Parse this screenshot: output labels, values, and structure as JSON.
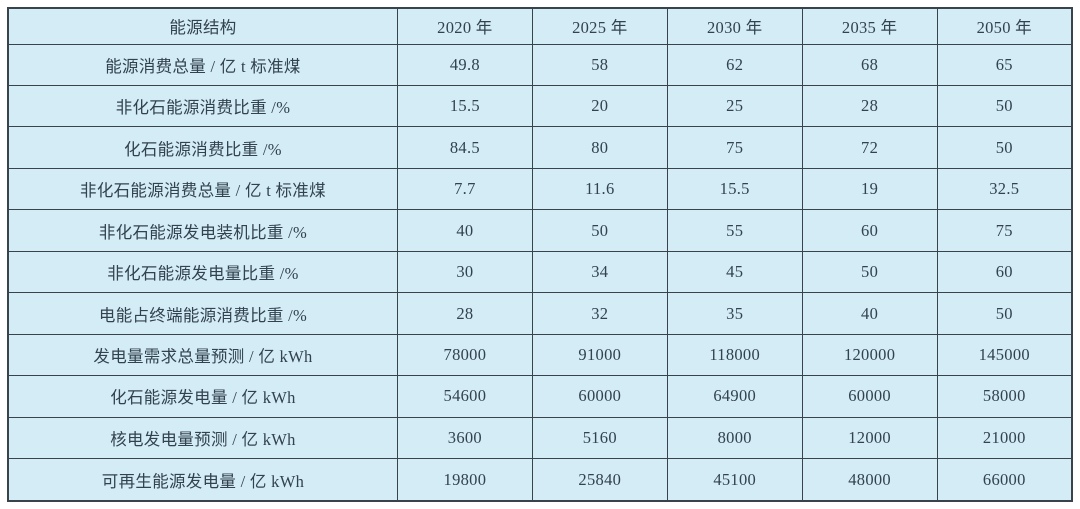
{
  "colors": {
    "cell_background": "#d3ecf6",
    "border": "#39434b",
    "text": "#32424e",
    "page_background": "#ffffff"
  },
  "chart_data": {
    "type": "table",
    "title": "能源结构",
    "columns": {
      "corner": "能源结构",
      "years": [
        "2020 年",
        "2025 年",
        "2030 年",
        "2035 年",
        "2050 年"
      ]
    },
    "rows": [
      {
        "label": "能源消费总量 / 亿 t 标准煤",
        "values": [
          49.8,
          58,
          62,
          68,
          65
        ]
      },
      {
        "label": "非化石能源消费比重 /%",
        "values": [
          15.5,
          20,
          25,
          28,
          50
        ]
      },
      {
        "label": "化石能源消费比重 /%",
        "values": [
          84.5,
          80,
          75,
          72,
          50
        ]
      },
      {
        "label": "非化石能源消费总量 / 亿 t 标准煤",
        "values": [
          7.7,
          11.6,
          15.5,
          19,
          32.5
        ]
      },
      {
        "label": "非化石能源发电装机比重 /%",
        "values": [
          40,
          50,
          55,
          60,
          75
        ]
      },
      {
        "label": "非化石能源发电量比重 /%",
        "values": [
          30,
          34,
          45,
          50,
          60
        ]
      },
      {
        "label": "电能占终端能源消费比重 /%",
        "values": [
          28,
          32,
          35,
          40,
          50
        ]
      },
      {
        "label": "发电量需求总量预测 / 亿 kWh",
        "values": [
          78000,
          91000,
          118000,
          120000,
          145000
        ]
      },
      {
        "label": "化石能源发电量 / 亿 kWh",
        "values": [
          54600,
          60000,
          64900,
          60000,
          58000
        ]
      },
      {
        "label": "核电发电量预测 / 亿 kWh",
        "values": [
          3600,
          5160,
          8000,
          12000,
          21000
        ]
      },
      {
        "label": "可再生能源发电量 / 亿 kWh",
        "values": [
          19800,
          25840,
          45100,
          48000,
          66000
        ]
      }
    ]
  }
}
